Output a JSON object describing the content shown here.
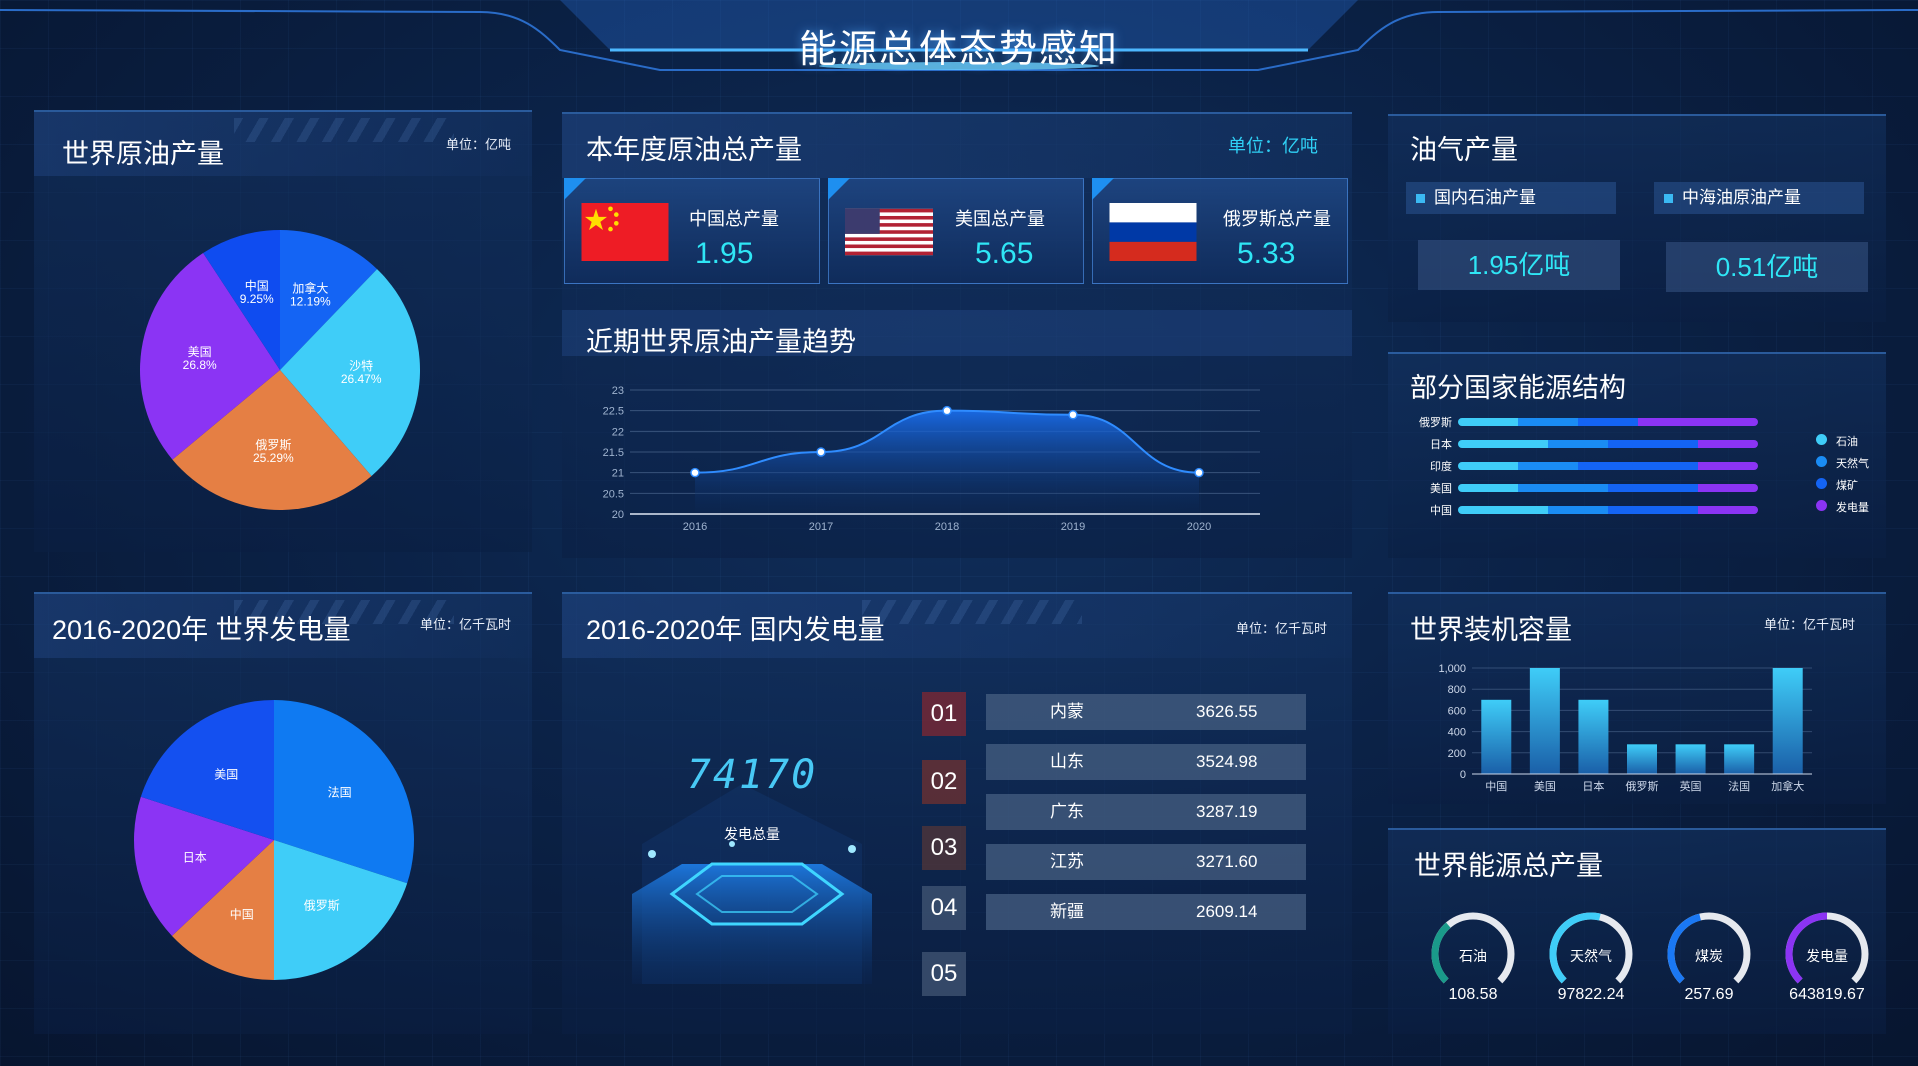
{
  "header": {
    "title": "能源总体态势感知"
  },
  "world_oil": {
    "title": "世界原油产量",
    "unit": "单位：亿吨",
    "slices": [
      {
        "name": "加拿大",
        "pct": "12.19%",
        "value": 12.19,
        "color": "#1464f4"
      },
      {
        "name": "沙特",
        "pct": "26.47%",
        "value": 26.47,
        "color": "#3fcdf8"
      },
      {
        "name": "俄罗斯",
        "pct": "25.29%",
        "value": 25.29,
        "color": "#e57f44"
      },
      {
        "name": "美国",
        "pct": "26.8%",
        "value": 26.8,
        "color": "#8b34f4"
      },
      {
        "name": "中国",
        "pct": "9.25%",
        "value": 9.25,
        "color": "#0f4cf0"
      }
    ]
  },
  "annual_oil": {
    "title": "本年度原油总产量",
    "unit": "单位：亿吨",
    "cards": [
      {
        "label": "中国总产量",
        "value": "1.95",
        "flag": "china-flag"
      },
      {
        "label": "美国总产量",
        "value": "5.65",
        "flag": "usa-flag"
      },
      {
        "label": "俄罗斯总产量",
        "value": "5.33",
        "flag": "russia-flag"
      }
    ]
  },
  "trend": {
    "title": "近期世界原油产量趋势"
  },
  "chart_data": [
    {
      "type": "area",
      "title": "近期世界原油产量趋势",
      "x": [
        "2016",
        "2017",
        "2018",
        "2019",
        "2020"
      ],
      "values": [
        21,
        21.5,
        22.5,
        22.4,
        21
      ],
      "ylim": [
        20,
        23
      ],
      "yticks": [
        "20",
        "20.5",
        "21",
        "21.5",
        "22",
        "22.5",
        "23"
      ],
      "grid": true
    },
    {
      "type": "bar",
      "title": "世界装机容量",
      "categories": [
        "中国",
        "美国",
        "日本",
        "俄罗斯",
        "英国",
        "法国",
        "加拿大"
      ],
      "values": [
        700,
        1000,
        700,
        280,
        280,
        280,
        1000
      ],
      "ylim": [
        0,
        1000
      ],
      "yticks": [
        "0",
        "200",
        "400",
        "600",
        "800",
        "1,000"
      ]
    },
    {
      "type": "pie",
      "title": "2016-2020年  世界发电量",
      "categories": [
        "法国",
        "俄罗斯",
        "中国",
        "日本",
        "美国"
      ],
      "values": [
        30,
        20,
        13,
        17,
        20
      ]
    }
  ],
  "oil_gas": {
    "title": "油气产量",
    "items": [
      {
        "label": "国内石油产量",
        "value": "1.95亿吨"
      },
      {
        "label": "中海油原油产量",
        "value": "0.51亿吨"
      }
    ]
  },
  "energy_structure": {
    "title": "部分国家能源结构",
    "countries": [
      "俄罗斯",
      "日本",
      "印度",
      "美国",
      "中国"
    ],
    "shares": [
      [
        0.2,
        0.2,
        0.2,
        0.4
      ],
      [
        0.3,
        0.2,
        0.3,
        0.2
      ],
      [
        0.2,
        0.2,
        0.4,
        0.2
      ],
      [
        0.2,
        0.3,
        0.3,
        0.2
      ],
      [
        0.3,
        0.2,
        0.3,
        0.2
      ]
    ],
    "legend": [
      {
        "name": "石油",
        "color": "#3fcdf8"
      },
      {
        "name": "天然气",
        "color": "#1a8cf4"
      },
      {
        "name": "煤矿",
        "color": "#1464f4"
      },
      {
        "name": "发电量",
        "color": "#8b34f4"
      }
    ]
  },
  "world_power": {
    "title": "2016-2020年  世界发电量",
    "unit": "单位：亿千瓦时",
    "slices": [
      {
        "name": "法国",
        "value": 30,
        "color": "#0f7af2"
      },
      {
        "name": "俄罗斯",
        "value": 20,
        "color": "#3fcdf8"
      },
      {
        "name": "中国",
        "value": 13,
        "color": "#e57f44"
      },
      {
        "name": "日本",
        "value": 17,
        "color": "#8b34f4"
      },
      {
        "name": "美国",
        "value": 20,
        "color": "#1450f0"
      }
    ]
  },
  "domestic_power": {
    "title": "2016-2020年  国内发电量",
    "unit": "单位：亿千瓦时",
    "total": "74170",
    "total_label": "发电总量",
    "ranks": [
      "01",
      "02",
      "03",
      "04",
      "05"
    ],
    "rows": [
      {
        "name": "内蒙",
        "value": "3626.55"
      },
      {
        "name": "山东",
        "value": "3524.98"
      },
      {
        "name": "广东",
        "value": "3287.19"
      },
      {
        "name": "江苏",
        "value": "3271.60"
      },
      {
        "name": "新疆",
        "value": "2609.14"
      }
    ]
  },
  "capacity": {
    "title": "世界装机容量",
    "unit": "单位：亿千瓦时"
  },
  "world_energy": {
    "title": "世界能源总产量",
    "gauges": [
      {
        "name": "石油",
        "value": "108.58",
        "fraction": 0.35,
        "color": "#1a9a8a"
      },
      {
        "name": "天然气",
        "value": "97822.24",
        "fraction": 0.55,
        "color": "#3fcdf8"
      },
      {
        "name": "煤炭",
        "value": "257.69",
        "fraction": 0.45,
        "color": "#1a78f4"
      },
      {
        "name": "发电量",
        "value": "643819.67",
        "fraction": 0.5,
        "color": "#8b34f4"
      }
    ]
  }
}
